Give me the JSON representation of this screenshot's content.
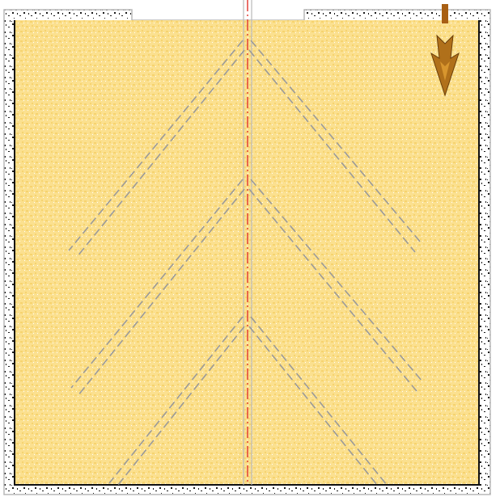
{
  "drawing": {
    "colors": {
      "background": "#ffffff",
      "sand": "#fbe08f",
      "sand_speckle": "#f6d36f",
      "concrete_dot": "#1b1b1b",
      "concrete_outline": "#b9b9b9",
      "inner_wall_line": "#111111",
      "centerline": "#e0322b",
      "dashed_line": "#9a9a9a",
      "arrow_fill": "#b0701a",
      "arrow_shaft": "#a85f14"
    },
    "icons": {
      "direction_arrow": "arrow-down-icon"
    },
    "elements": {
      "concrete_wall": "concrete-wall",
      "sand_fill": "sand-fill",
      "centerline": "center-axis",
      "branch_lines": "chevron-dashed-lines"
    }
  }
}
